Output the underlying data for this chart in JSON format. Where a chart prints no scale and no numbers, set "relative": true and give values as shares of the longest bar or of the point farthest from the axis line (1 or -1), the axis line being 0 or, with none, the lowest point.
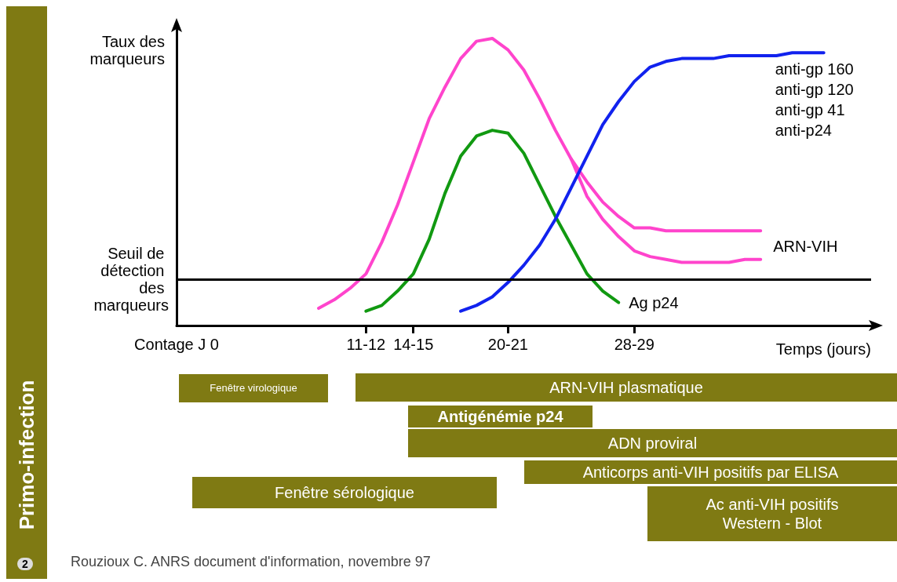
{
  "chart_data": [
    {
      "type": "line",
      "title": "Primo-infection",
      "ylabel": "Taux des marqueurs",
      "xlabel": "Temps (jours)",
      "relative": true,
      "tick_labels": "x",
      "marker": "none",
      "line_style": "solid",
      "grid": false,
      "legend": false,
      "categories": [
        "Contage J 0",
        null,
        null,
        null,
        null,
        null,
        null,
        null,
        null,
        null,
        null,
        null,
        "11-12",
        null,
        null,
        "14-15",
        null,
        null,
        null,
        null,
        null,
        "20-21",
        null,
        null,
        null,
        null,
        null,
        null,
        null,
        "28-29",
        null,
        null,
        null,
        null,
        null,
        null,
        null,
        null,
        null,
        null,
        null,
        null,
        null,
        null,
        null
      ],
      "ref_lines": [
        {
          "axis": "y",
          "value": 0.16,
          "label": "Seuil de détection des marqueurs",
          "color": "#000000"
        }
      ],
      "annotations": [
        "Rouzioux C. ANRS document d'information, novembre 97",
        "2"
      ],
      "series": [
        {
          "name": "ARN-VIH",
          "color": "#ff44cc",
          "values": [
            null,
            null,
            null,
            null,
            null,
            null,
            null,
            null,
            null,
            0.06,
            0.09,
            0.13,
            0.18,
            0.29,
            0.42,
            0.57,
            0.72,
            0.83,
            0.93,
            0.99,
            1.0,
            0.96,
            0.89,
            0.79,
            0.68,
            0.58,
            0.5,
            0.43,
            0.38,
            0.34,
            0.34,
            0.33,
            0.33,
            0.33,
            0.33,
            0.33,
            0.33,
            0.33,
            null,
            null,
            null,
            null,
            null,
            null,
            null
          ]
        },
        {
          "color": "#ff44cc",
          "values": [
            null,
            null,
            null,
            null,
            null,
            null,
            null,
            null,
            null,
            null,
            null,
            null,
            null,
            null,
            null,
            null,
            null,
            null,
            null,
            null,
            null,
            null,
            null,
            null,
            null,
            0.58,
            0.45,
            0.37,
            0.31,
            0.26,
            0.24,
            0.23,
            0.22,
            0.22,
            0.22,
            0.22,
            0.23,
            0.23,
            null,
            null,
            null,
            null,
            null,
            null,
            null
          ]
        },
        {
          "name": "Ag p24",
          "color": "#119911",
          "values": [
            null,
            null,
            null,
            null,
            null,
            null,
            null,
            null,
            null,
            null,
            null,
            null,
            0.05,
            0.07,
            0.12,
            0.18,
            0.3,
            0.46,
            0.59,
            0.66,
            0.68,
            0.67,
            0.6,
            0.49,
            0.38,
            0.28,
            0.18,
            0.12,
            0.08,
            null,
            null,
            null,
            null,
            null,
            null,
            null,
            null,
            null,
            null,
            null,
            null,
            null,
            null,
            null,
            null
          ]
        },
        {
          "name": "anti-gp 160\nanti-gp 120\nanti-gp 41\nanti-p24",
          "color": "#1122ee",
          "values": [
            null,
            null,
            null,
            null,
            null,
            null,
            null,
            null,
            null,
            null,
            null,
            null,
            null,
            null,
            null,
            null,
            null,
            null,
            0.05,
            0.07,
            0.1,
            0.15,
            0.21,
            0.28,
            0.37,
            0.48,
            0.59,
            0.7,
            0.78,
            0.85,
            0.9,
            0.92,
            0.93,
            0.93,
            0.93,
            0.94,
            0.94,
            0.94,
            0.94,
            0.95,
            0.95,
            0.95,
            null,
            null,
            null
          ]
        }
      ]
    },
    {
      "type": "other",
      "annotations": [
        "Fenêtre virologique",
        "ARN-VIH plasmatique",
        "Antigénémie p24",
        "ADN proviral",
        "Anticorps anti-VIH positifs par ELISA",
        "Fenêtre sérologique",
        "Ac anti-VIH positifs Western - Blot"
      ]
    }
  ]
}
